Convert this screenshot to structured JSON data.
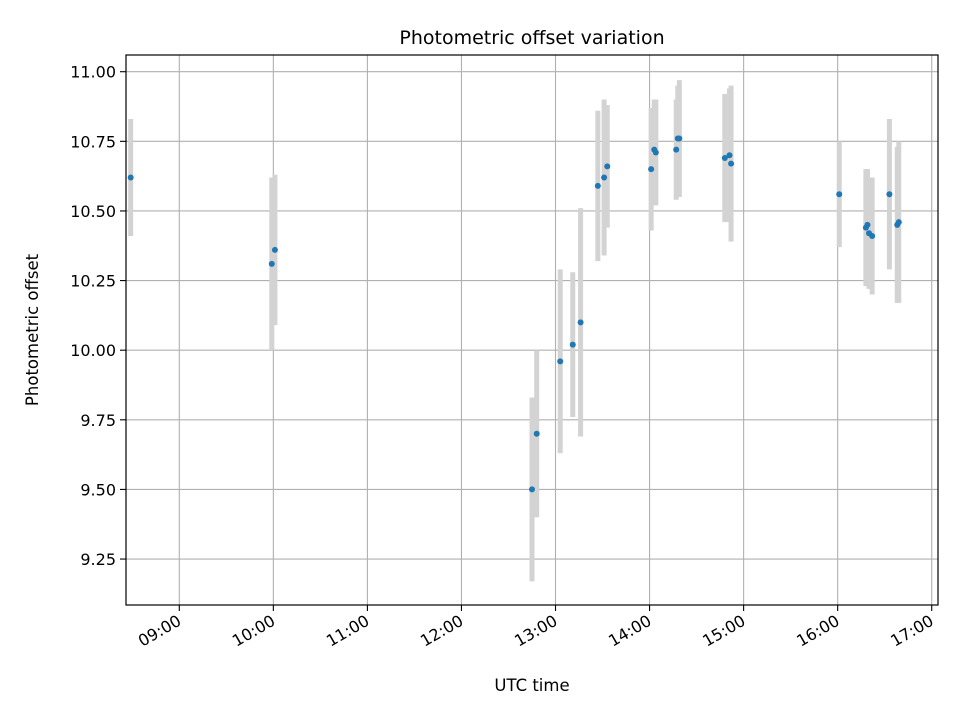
{
  "chart_data": {
    "type": "scatter",
    "title": "Photometric offset variation",
    "xlabel": "UTC time",
    "ylabel": "Photometric offset",
    "grid": true,
    "legend": "none",
    "x_ticks": [
      "09:00",
      "10:00",
      "11:00",
      "12:00",
      "13:00",
      "14:00",
      "15:00",
      "16:00",
      "17:00"
    ],
    "y_ticks": [
      "9.25",
      "9.50",
      "9.75",
      "10.00",
      "10.25",
      "10.50",
      "10.75",
      "11.00"
    ],
    "xlim": [
      "08:26",
      "17:04"
    ],
    "ylim": [
      9.085,
      11.06
    ],
    "colors": {
      "marker": "#1f77b4",
      "errorbar": "#d3d3d3",
      "grid": "#b0b0b0"
    },
    "points": [
      {
        "x": "08:29",
        "y": 10.62,
        "err": 0.21
      },
      {
        "x": "09:59",
        "y": 10.31,
        "err": 0.31
      },
      {
        "x": "10:01",
        "y": 10.36,
        "err": 0.27
      },
      {
        "x": "12:45",
        "y": 9.5,
        "err": 0.33
      },
      {
        "x": "12:48",
        "y": 9.7,
        "err": 0.3
      },
      {
        "x": "13:03",
        "y": 9.96,
        "err": 0.33
      },
      {
        "x": "13:11",
        "y": 10.02,
        "err": 0.26
      },
      {
        "x": "13:16",
        "y": 10.1,
        "err": 0.41
      },
      {
        "x": "13:27",
        "y": 10.59,
        "err": 0.27
      },
      {
        "x": "13:31",
        "y": 10.62,
        "err": 0.28
      },
      {
        "x": "13:33",
        "y": 10.66,
        "err": 0.22
      },
      {
        "x": "14:01",
        "y": 10.65,
        "err": 0.22
      },
      {
        "x": "14:03",
        "y": 10.72,
        "err": 0.18
      },
      {
        "x": "14:04",
        "y": 10.71,
        "err": 0.19
      },
      {
        "x": "14:17",
        "y": 10.72,
        "err": 0.18
      },
      {
        "x": "14:18",
        "y": 10.76,
        "err": 0.19
      },
      {
        "x": "14:19",
        "y": 10.76,
        "err": 0.21
      },
      {
        "x": "14:48",
        "y": 10.69,
        "err": 0.23
      },
      {
        "x": "14:51",
        "y": 10.7,
        "err": 0.24
      },
      {
        "x": "14:52",
        "y": 10.67,
        "err": 0.28
      },
      {
        "x": "16:01",
        "y": 10.56,
        "err": 0.19
      },
      {
        "x": "16:18",
        "y": 10.44,
        "err": 0.21
      },
      {
        "x": "16:19",
        "y": 10.45,
        "err": 0.2
      },
      {
        "x": "16:20",
        "y": 10.42,
        "err": 0.2
      },
      {
        "x": "16:22",
        "y": 10.41,
        "err": 0.21
      },
      {
        "x": "16:33",
        "y": 10.56,
        "err": 0.27
      },
      {
        "x": "16:38",
        "y": 10.45,
        "err": 0.28
      },
      {
        "x": "16:39",
        "y": 10.46,
        "err": 0.29
      }
    ]
  }
}
